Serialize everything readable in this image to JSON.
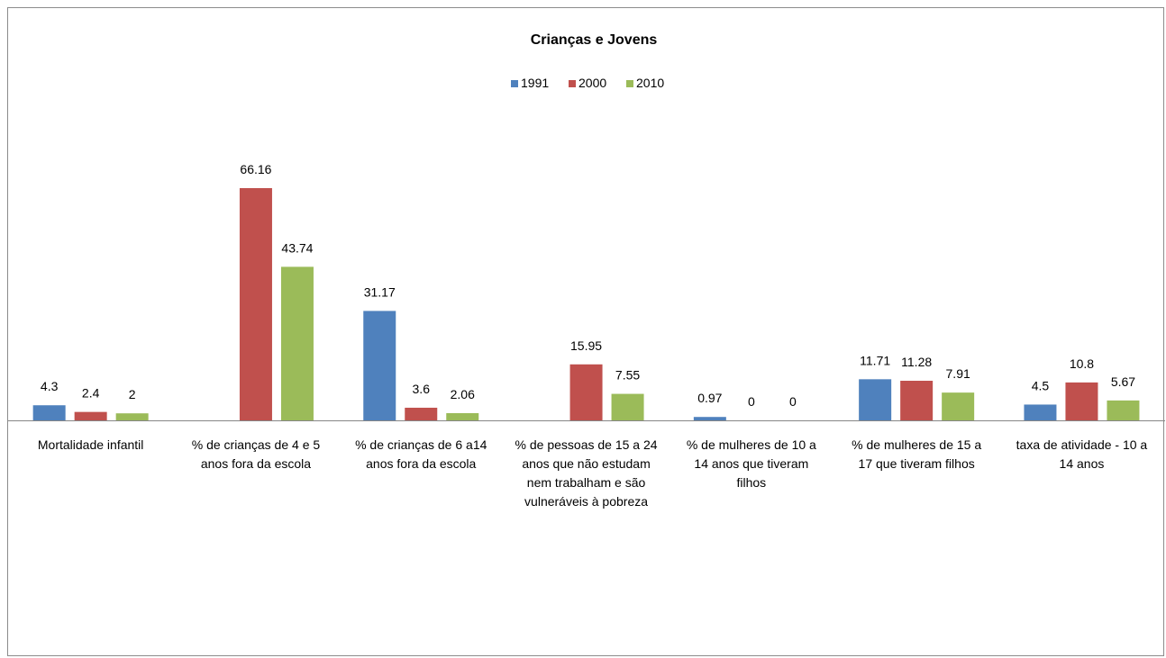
{
  "chart_data": {
    "type": "bar",
    "title": "Crianças e Jovens",
    "legend_position": "top",
    "grid": false,
    "ylim": [
      0,
      70
    ],
    "categories": [
      [
        "Mortalidade infantil"
      ],
      [
        "% de crianças de 4 e 5",
        "anos fora da escola"
      ],
      [
        "% de crianças de 6 a14",
        "anos fora da escola"
      ],
      [
        "% de pessoas de 15 a 24",
        "anos que não estudam",
        "nem trabalham e são",
        "vulneráveis à pobreza"
      ],
      [
        "% de mulheres de 10 a",
        "14 anos que tiveram",
        "filhos"
      ],
      [
        "% de mulheres de 15 a",
        "17 que tiveram filhos"
      ],
      [
        "taxa de atividade - 10 a",
        "14 anos"
      ]
    ],
    "series": [
      {
        "name": "1991",
        "color": "#4F81BD",
        "values": [
          4.3,
          null,
          31.17,
          null,
          0.97,
          11.71,
          4.5
        ]
      },
      {
        "name": "2000",
        "color": "#C0504D",
        "values": [
          2.4,
          66.16,
          3.6,
          15.95,
          0,
          11.28,
          10.8
        ]
      },
      {
        "name": "2010",
        "color": "#9BBB59",
        "values": [
          2,
          43.74,
          2.06,
          7.55,
          0,
          7.91,
          5.67
        ]
      }
    ]
  }
}
